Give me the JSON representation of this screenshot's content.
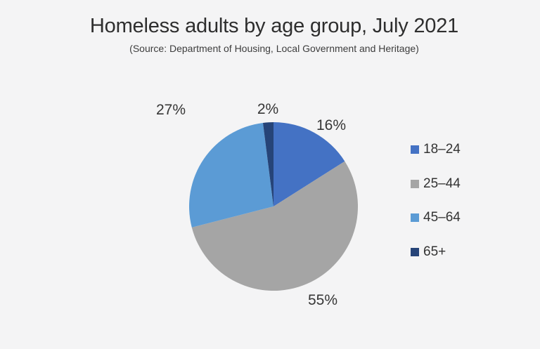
{
  "page": {
    "background_color": "#f4f4f5"
  },
  "chart_data": {
    "type": "pie",
    "title": "Homeless adults by age group, July 2021",
    "subtitle": "(Source: Department of Housing, Local Government and Heritage)",
    "categories": [
      "18–24",
      "25–44",
      "45–64",
      "65+"
    ],
    "values": [
      16,
      55,
      27,
      2
    ],
    "unit": "%",
    "colors": [
      "#4472c4",
      "#a5a5a5",
      "#5b9bd5",
      "#264478"
    ],
    "data_labels": [
      "16%",
      "55%",
      "27%",
      "2%"
    ],
    "slice_order": "clockwise-from-top",
    "legend": {
      "position": "right",
      "entries": [
        "18–24",
        "25–44",
        "45–64",
        "65+"
      ]
    }
  }
}
